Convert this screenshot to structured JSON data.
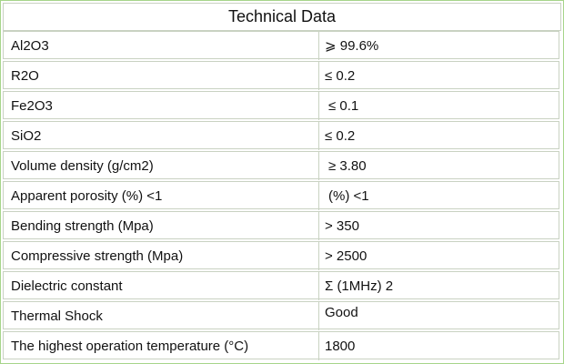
{
  "table": {
    "title": "Technical Data",
    "rows": [
      {
        "property": "Al2O3",
        "value": "⩾ 99.6%"
      },
      {
        "property": "R2O",
        "value": "≤ 0.2"
      },
      {
        "property": "Fe2O3",
        "value": "≤ 0.1"
      },
      {
        "property": "SiO2",
        "value": "≤ 0.2"
      },
      {
        "property": "Volume density (g/cm2)",
        "value": "≥ 3.80"
      },
      {
        "property": "Apparent porosity (%) <1",
        "value": "(%) <1"
      },
      {
        "property": "Bending strength (Mpa)",
        "value": "> 350"
      },
      {
        "property": "Compressive strength (Mpa)",
        "value": "> 2500"
      },
      {
        "property": "Dielectric constant",
        "value": "Σ (1MHz) 2"
      },
      {
        "property": "Thermal Shock",
        "value": "Good"
      },
      {
        "property": "The highest operation temperature (°C)",
        "value": "1800"
      }
    ]
  }
}
